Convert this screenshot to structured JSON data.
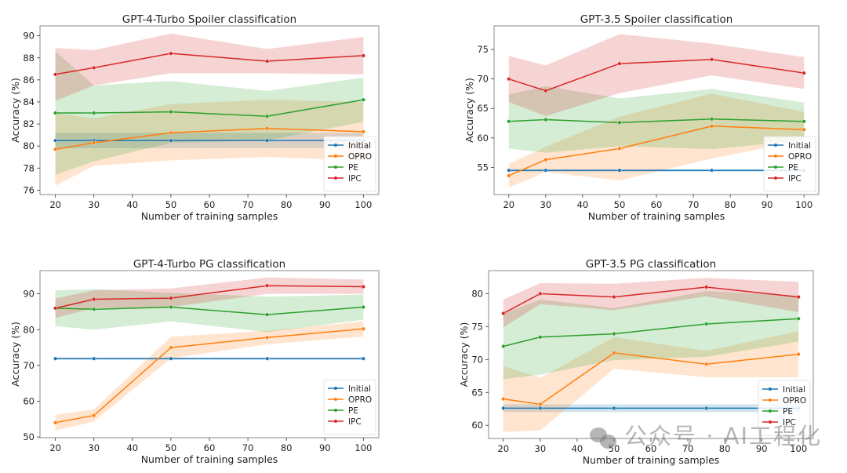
{
  "figure": {
    "watermark": "公众号 · AI工程化",
    "legend_labels": [
      "Initial",
      "OPRO",
      "PE",
      "IPC"
    ],
    "colors": {
      "Initial": "#1f77b4",
      "OPRO": "#ff7f0e",
      "PE": "#2ca02c",
      "IPC": "#d62728",
      "frame": "#888888"
    }
  },
  "chart_data": [
    {
      "id": "gpt4-spoiler",
      "type": "line",
      "title": "GPT-4-Turbo Spoiler classification",
      "xlabel": "Number of training samples",
      "ylabel": "Accuracy (%)",
      "x": [
        20,
        30,
        50,
        75,
        100
      ],
      "xticks": [
        20,
        30,
        40,
        50,
        60,
        70,
        80,
        90,
        100
      ],
      "yticks": [
        76,
        78,
        80,
        82,
        84,
        86,
        88,
        90
      ],
      "xlim": [
        16,
        104
      ],
      "ylim": [
        75.6,
        90.9
      ],
      "legend": "lower-right",
      "grid": false,
      "series": [
        {
          "name": "Initial",
          "values": [
            80.5,
            80.5,
            80.5,
            80.5,
            80.5
          ],
          "lower": [
            79.8,
            79.8,
            79.8,
            79.8,
            79.8
          ],
          "upper": [
            81.2,
            81.2,
            81.2,
            81.2,
            81.2
          ]
        },
        {
          "name": "OPRO",
          "values": [
            79.7,
            80.3,
            81.2,
            81.6,
            81.3
          ],
          "lower": [
            76.4,
            78.2,
            78.7,
            79.0,
            78.7
          ],
          "upper": [
            83.0,
            82.5,
            83.8,
            84.2,
            84.0
          ]
        },
        {
          "name": "PE",
          "values": [
            83.0,
            83.0,
            83.1,
            82.7,
            84.2
          ],
          "lower": [
            77.4,
            78.6,
            80.3,
            80.5,
            82.2
          ],
          "upper": [
            88.6,
            85.5,
            85.9,
            85.0,
            86.2
          ]
        },
        {
          "name": "IPC",
          "values": [
            86.5,
            87.1,
            88.4,
            87.7,
            88.2
          ],
          "lower": [
            84.1,
            85.5,
            86.6,
            86.6,
            86.5
          ],
          "upper": [
            88.9,
            88.7,
            90.2,
            88.8,
            89.9
          ]
        }
      ]
    },
    {
      "id": "gpt35-spoiler",
      "type": "line",
      "title": "GPT-3.5 Spoiler classification",
      "xlabel": "Number of training samples",
      "ylabel": "Accuracy (%)",
      "x": [
        20,
        30,
        50,
        75,
        100
      ],
      "xticks": [
        20,
        30,
        40,
        50,
        60,
        70,
        80,
        90,
        100
      ],
      "yticks": [
        55,
        60,
        65,
        70,
        75
      ],
      "xlim": [
        16,
        104
      ],
      "ylim": [
        50.4,
        79.0
      ],
      "legend": "lower-right",
      "grid": false,
      "series": [
        {
          "name": "Initial",
          "values": [
            54.5,
            54.5,
            54.5,
            54.5,
            54.5
          ],
          "lower": [
            54.3,
            54.3,
            54.3,
            54.3,
            54.3
          ],
          "upper": [
            54.7,
            54.7,
            54.7,
            54.7,
            54.7
          ]
        },
        {
          "name": "OPRO",
          "values": [
            53.6,
            56.3,
            58.2,
            62.0,
            61.4
          ],
          "lower": [
            51.6,
            54.2,
            52.8,
            56.5,
            59.6
          ],
          "upper": [
            55.6,
            58.5,
            63.6,
            67.5,
            64.4
          ]
        },
        {
          "name": "PE",
          "values": [
            62.8,
            63.1,
            62.6,
            63.2,
            62.8
          ],
          "lower": [
            58.2,
            57.5,
            58.6,
            58.1,
            59.6
          ],
          "upper": [
            67.4,
            68.8,
            66.7,
            68.3,
            66.0
          ]
        },
        {
          "name": "IPC",
          "values": [
            70.0,
            68.0,
            72.6,
            73.3,
            71.0
          ],
          "lower": [
            66.1,
            63.7,
            67.6,
            70.6,
            68.3
          ],
          "upper": [
            73.9,
            72.3,
            77.6,
            76.0,
            73.7
          ]
        }
      ]
    },
    {
      "id": "gpt4-pg",
      "type": "line",
      "title": "GPT-4-Turbo PG classification",
      "xlabel": "Number of training samples",
      "ylabel": "Accuracy (%)",
      "x": [
        20,
        30,
        50,
        75,
        100
      ],
      "xticks": [
        20,
        30,
        40,
        50,
        60,
        70,
        80,
        90,
        100
      ],
      "yticks": [
        50,
        60,
        70,
        80,
        90
      ],
      "xlim": [
        16,
        104
      ],
      "ylim": [
        49.8,
        96.5
      ],
      "legend": "lower-right",
      "grid": false,
      "series": [
        {
          "name": "Initial",
          "values": [
            71.9,
            71.9,
            71.9,
            71.9,
            71.9
          ],
          "lower": [
            71.6,
            71.6,
            71.6,
            71.6,
            71.6
          ],
          "upper": [
            72.2,
            72.2,
            72.2,
            72.2,
            72.2
          ]
        },
        {
          "name": "OPRO",
          "values": [
            54.0,
            56.0,
            75.0,
            77.8,
            80.2
          ],
          "lower": [
            51.8,
            54.3,
            72.0,
            75.9,
            78.1
          ],
          "upper": [
            56.2,
            57.7,
            78.0,
            79.7,
            82.3
          ]
        },
        {
          "name": "PE",
          "values": [
            86.0,
            85.7,
            86.3,
            84.2,
            86.3
          ],
          "lower": [
            81.0,
            80.0,
            82.3,
            79.3,
            82.8
          ],
          "upper": [
            91.0,
            91.3,
            90.3,
            89.2,
            89.8
          ]
        },
        {
          "name": "IPC",
          "values": [
            86.0,
            88.5,
            88.8,
            92.3,
            92.0
          ],
          "lower": [
            83.3,
            86.0,
            86.3,
            90.0,
            90.0
          ],
          "upper": [
            88.7,
            91.0,
            91.5,
            94.6,
            94.0
          ]
        }
      ]
    },
    {
      "id": "gpt35-pg",
      "type": "line",
      "title": "GPT-3.5 PG classification",
      "xlabel": "Number of training samples",
      "ylabel": "Accuracy (%)",
      "x": [
        20,
        30,
        50,
        75,
        100
      ],
      "xticks": [
        20,
        30,
        40,
        50,
        60,
        70,
        80,
        90,
        100
      ],
      "yticks": [
        60,
        65,
        70,
        75,
        80
      ],
      "xlim": [
        16,
        104
      ],
      "ylim": [
        58.0,
        83.5
      ],
      "legend": "lower-right",
      "grid": false,
      "series": [
        {
          "name": "Initial",
          "values": [
            62.6,
            62.6,
            62.6,
            62.6,
            62.6
          ],
          "lower": [
            62.0,
            62.0,
            62.0,
            62.0,
            62.0
          ],
          "upper": [
            63.2,
            63.2,
            63.2,
            63.2,
            63.2
          ]
        },
        {
          "name": "OPRO",
          "values": [
            64.0,
            63.2,
            71.0,
            69.3,
            70.8
          ],
          "lower": [
            59.0,
            59.2,
            68.6,
            67.3,
            67.3
          ],
          "upper": [
            69.0,
            67.2,
            73.4,
            71.3,
            74.3
          ]
        },
        {
          "name": "PE",
          "values": [
            72.0,
            73.4,
            73.9,
            75.4,
            76.2
          ],
          "lower": [
            67.0,
            67.7,
            69.9,
            70.4,
            72.7
          ],
          "upper": [
            77.0,
            79.1,
            77.8,
            80.4,
            79.7
          ]
        },
        {
          "name": "IPC",
          "values": [
            77.0,
            80.0,
            79.5,
            81.0,
            79.5
          ],
          "lower": [
            74.9,
            78.4,
            77.5,
            79.6,
            77.2
          ],
          "upper": [
            79.1,
            81.6,
            81.5,
            82.4,
            81.8
          ]
        }
      ]
    }
  ]
}
